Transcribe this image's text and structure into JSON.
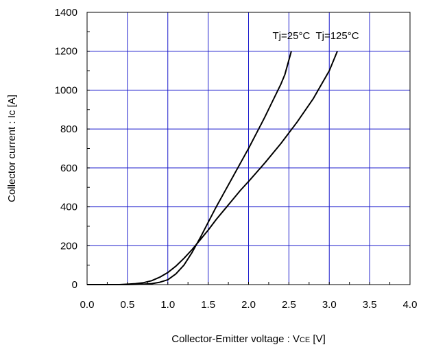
{
  "chart_data": {
    "type": "line",
    "xlabel": {
      "main": "Collector-Emitter voltage : V",
      "sub": "CE",
      "unit": " [V]"
    },
    "ylabel": "Collector current : Ic [A]",
    "xlim": [
      0,
      4
    ],
    "ylim": [
      0,
      1400
    ],
    "x_ticks": [
      0,
      0.5,
      1,
      1.5,
      2,
      2.5,
      3,
      3.5,
      4
    ],
    "x_tick_labels": [
      "0.0",
      "0.5",
      "1.0",
      "1.5",
      "2.0",
      "2.5",
      "3.0",
      "3.5",
      "4.0"
    ],
    "y_ticks": [
      0,
      200,
      400,
      600,
      800,
      1000,
      1200,
      1400
    ],
    "y_tick_labels": [
      "0",
      "200",
      "400",
      "600",
      "800",
      "1000",
      "1200",
      "1400"
    ],
    "grid": true,
    "grid_color": "#1a1acc",
    "line_color": "#000000",
    "series": [
      {
        "name": "Tj=25°C",
        "points": [
          [
            0,
            0
          ],
          [
            0.5,
            0
          ],
          [
            0.7,
            2
          ],
          [
            0.8,
            5
          ],
          [
            0.9,
            12
          ],
          [
            1.0,
            25
          ],
          [
            1.1,
            55
          ],
          [
            1.2,
            100
          ],
          [
            1.3,
            165
          ],
          [
            1.4,
            240
          ],
          [
            1.5,
            320
          ],
          [
            1.6,
            400
          ],
          [
            1.7,
            475
          ],
          [
            1.8,
            550
          ],
          [
            1.9,
            625
          ],
          [
            2.0,
            700
          ],
          [
            2.1,
            780
          ],
          [
            2.2,
            860
          ],
          [
            2.3,
            945
          ],
          [
            2.4,
            1030
          ],
          [
            2.45,
            1080
          ],
          [
            2.53,
            1200
          ]
        ]
      },
      {
        "name": "Tj=125°C",
        "points": [
          [
            0,
            0
          ],
          [
            0.4,
            0
          ],
          [
            0.5,
            2
          ],
          [
            0.6,
            5
          ],
          [
            0.7,
            10
          ],
          [
            0.8,
            20
          ],
          [
            0.9,
            38
          ],
          [
            1.0,
            62
          ],
          [
            1.1,
            95
          ],
          [
            1.2,
            135
          ],
          [
            1.3,
            180
          ],
          [
            1.4,
            230
          ],
          [
            1.5,
            280
          ],
          [
            1.6,
            335
          ],
          [
            1.7,
            385
          ],
          [
            1.8,
            435
          ],
          [
            1.9,
            485
          ],
          [
            2.0,
            530
          ],
          [
            2.2,
            625
          ],
          [
            2.4,
            725
          ],
          [
            2.6,
            835
          ],
          [
            2.8,
            955
          ],
          [
            3.0,
            1100
          ],
          [
            3.1,
            1200
          ]
        ]
      }
    ]
  }
}
